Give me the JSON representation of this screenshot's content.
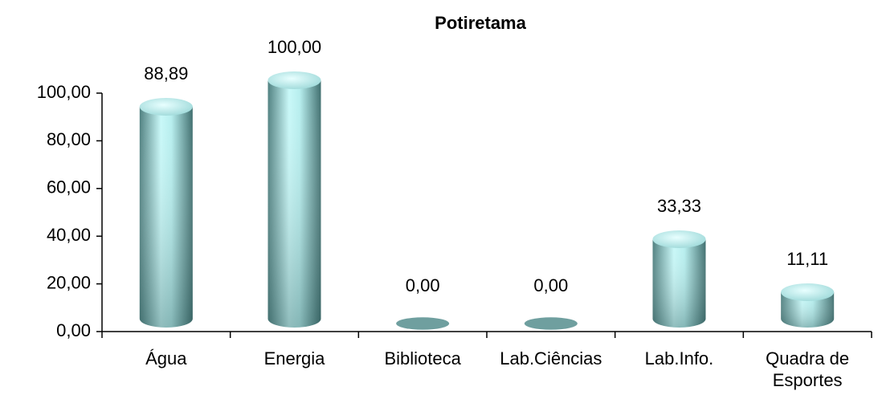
{
  "chart_data": {
    "type": "bar",
    "title": "Potiretama",
    "categories": [
      "Água",
      "Energia",
      "Biblioteca",
      "Lab.Ciências",
      "Lab.Info.",
      "Quadra de Esportes"
    ],
    "values": [
      88.89,
      100,
      0,
      0,
      33.33,
      11.11
    ],
    "value_labels": [
      "88,89",
      "100,00",
      "0,00",
      "0,00",
      "33,33",
      "11,11"
    ],
    "color": "#a8e6e6",
    "ylim": [
      0,
      100
    ],
    "yticks": [
      {
        "value": 0,
        "label": "0,00"
      },
      {
        "value": 20,
        "label": "20,00"
      },
      {
        "value": 40,
        "label": "40,00"
      },
      {
        "value": 60,
        "label": "60,00"
      },
      {
        "value": 80,
        "label": "80,00"
      },
      {
        "value": 100,
        "label": "100,00"
      }
    ],
    "grid": false
  }
}
